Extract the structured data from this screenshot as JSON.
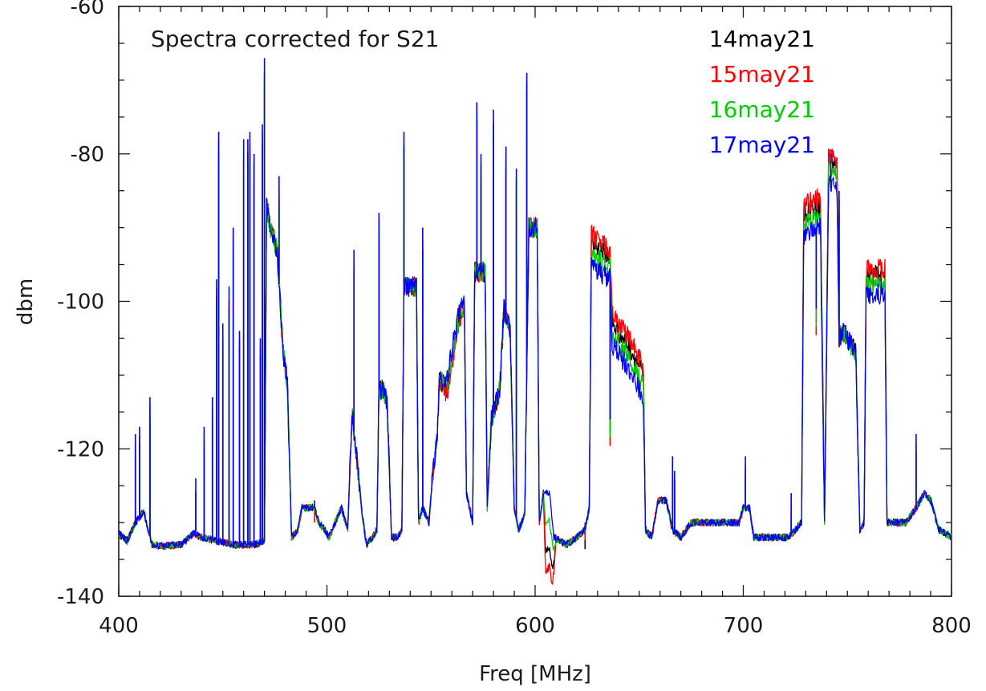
{
  "chart_data": {
    "type": "line",
    "title": "",
    "annotation": "Spectra corrected for S21",
    "xlabel": "Freq [MHz]",
    "ylabel": "dbm",
    "xlim": [
      400,
      800
    ],
    "ylim": [
      -140,
      -60
    ],
    "xticks": [
      400,
      500,
      600,
      700,
      800
    ],
    "xtick_labels": [
      "400",
      "500",
      "600",
      "700",
      "800"
    ],
    "yticks": [
      -140,
      -120,
      -100,
      -80,
      -60
    ],
    "ytick_labels": [
      "-140",
      "-120",
      "-100",
      "-80",
      "-60"
    ],
    "x_minor_step": 10,
    "y_minor_step": 5,
    "grid": false,
    "legend_position": "top-right",
    "baseline": [
      [
        400,
        -131.5
      ],
      [
        404,
        -132.5
      ],
      [
        408,
        -130
      ],
      [
        412,
        -128.5
      ],
      [
        416,
        -133
      ],
      [
        420,
        -133.2
      ],
      [
        430,
        -133
      ],
      [
        436,
        -131.5
      ],
      [
        440,
        -132
      ],
      [
        447,
        -132.5
      ],
      [
        455,
        -133
      ],
      [
        465,
        -133
      ],
      [
        470,
        -132.5
      ],
      [
        471,
        -87
      ],
      [
        473,
        -90
      ],
      [
        476,
        -93
      ],
      [
        479,
        -107
      ],
      [
        481,
        -111
      ],
      [
        483,
        -132
      ],
      [
        486,
        -131
      ],
      [
        488,
        -128
      ],
      [
        494,
        -128
      ],
      [
        496,
        -130
      ],
      [
        499,
        -131
      ],
      [
        501,
        -132
      ],
      [
        504,
        -130
      ],
      [
        507,
        -128
      ],
      [
        510,
        -131
      ],
      [
        512,
        -115
      ],
      [
        515,
        -123
      ],
      [
        517,
        -129
      ],
      [
        519,
        -133
      ],
      [
        522,
        -132
      ],
      [
        524,
        -131
      ],
      [
        525,
        -112
      ],
      [
        527,
        -112
      ],
      [
        529,
        -114
      ],
      [
        531,
        -132
      ],
      [
        534,
        -132
      ],
      [
        536,
        -131
      ],
      [
        537,
        -98
      ],
      [
        543,
        -98
      ],
      [
        544,
        -130
      ],
      [
        546,
        -128
      ],
      [
        549,
        -130
      ],
      [
        551,
        -123
      ],
      [
        553,
        -118
      ],
      [
        554,
        -111
      ],
      [
        558,
        -110
      ],
      [
        563,
        -102
      ],
      [
        566,
        -100
      ],
      [
        567,
        -126
      ],
      [
        570,
        -130
      ],
      [
        571,
        -96
      ],
      [
        576,
        -96
      ],
      [
        577,
        -128
      ],
      [
        579,
        -116
      ],
      [
        583,
        -112
      ],
      [
        585,
        -101
      ],
      [
        588,
        -104
      ],
      [
        590,
        -128
      ],
      [
        592,
        -131
      ],
      [
        595,
        -129
      ],
      [
        597,
        -90
      ],
      [
        601,
        -90
      ],
      [
        602,
        -130
      ],
      [
        604,
        -126
      ],
      [
        607,
        -126
      ],
      [
        609,
        -132
      ],
      [
        615,
        -133
      ],
      [
        620,
        -132
      ],
      [
        624,
        -131
      ],
      [
        626,
        -128
      ],
      [
        627,
        -95
      ],
      [
        631,
        -96
      ],
      [
        636,
        -97
      ],
      [
        637,
        -106
      ],
      [
        645,
        -109
      ],
      [
        652,
        -113
      ],
      [
        653,
        -131
      ],
      [
        656,
        -132
      ],
      [
        659,
        -127
      ],
      [
        663,
        -127
      ],
      [
        666,
        -131
      ],
      [
        670,
        -132
      ],
      [
        675,
        -130
      ],
      [
        685,
        -130
      ],
      [
        692,
        -130
      ],
      [
        698,
        -130
      ],
      [
        700,
        -128
      ],
      [
        703,
        -128
      ],
      [
        705,
        -132
      ],
      [
        712,
        -132
      ],
      [
        722,
        -132
      ],
      [
        728,
        -130
      ],
      [
        729,
        -91
      ],
      [
        737,
        -90
      ],
      [
        739,
        -130
      ],
      [
        741,
        -84
      ],
      [
        745,
        -85
      ],
      [
        746,
        -105
      ],
      [
        748,
        -104
      ],
      [
        754,
        -107
      ],
      [
        756,
        -131
      ],
      [
        758,
        -130
      ],
      [
        759,
        -99
      ],
      [
        768,
        -99
      ],
      [
        769,
        -130
      ],
      [
        772,
        -130
      ],
      [
        778,
        -130
      ],
      [
        783,
        -128
      ],
      [
        787,
        -126
      ],
      [
        790,
        -127
      ],
      [
        794,
        -131
      ],
      [
        800,
        -132
      ]
    ],
    "spikes": [
      [
        408,
        -118
      ],
      [
        410,
        -117
      ],
      [
        415,
        -113
      ],
      [
        437,
        -124
      ],
      [
        441,
        -117
      ],
      [
        445,
        -113
      ],
      [
        447,
        -97
      ],
      [
        448,
        -77
      ],
      [
        450,
        -103
      ],
      [
        453,
        -98
      ],
      [
        455,
        -90
      ],
      [
        458,
        -104
      ],
      [
        460,
        -78
      ],
      [
        462,
        -78
      ],
      [
        463,
        -77
      ],
      [
        465,
        -80
      ],
      [
        468,
        -105
      ],
      [
        469,
        -76
      ],
      [
        470,
        -67
      ],
      [
        477,
        -83
      ],
      [
        494,
        -127
      ],
      [
        513,
        -93
      ],
      [
        525,
        -88
      ],
      [
        537,
        -77
      ],
      [
        546,
        -90
      ],
      [
        561,
        -105
      ],
      [
        572,
        -73
      ],
      [
        574,
        -80
      ],
      [
        580,
        -74
      ],
      [
        586,
        -79
      ],
      [
        591,
        -82
      ],
      [
        596,
        -69
      ],
      [
        624,
        -130
      ],
      [
        636,
        -116
      ],
      [
        666,
        -121
      ],
      [
        667,
        -123
      ],
      [
        701,
        -121
      ],
      [
        723,
        -126
      ],
      [
        735,
        -101
      ],
      [
        742,
        -80
      ],
      [
        746,
        -85
      ],
      [
        783,
        -118
      ]
    ],
    "series": [
      {
        "name": "14may21",
        "color": "#000000",
        "offset_scale": 1.0
      },
      {
        "name": "15may21",
        "color": "#ff0000",
        "offset_scale": 1.35
      },
      {
        "name": "16may21",
        "color": "#00cc00",
        "offset_scale": 0.5
      },
      {
        "name": "17may21",
        "color": "#0000ff",
        "offset_scale": 0.0
      }
    ],
    "series_offsets_db": [
      [
        450,
        0
      ],
      [
        555,
        0
      ],
      [
        557,
        -1.5
      ],
      [
        563,
        -1
      ],
      [
        566,
        0
      ],
      [
        604,
        0
      ],
      [
        605,
        -8
      ],
      [
        608,
        -7
      ],
      [
        610,
        0
      ],
      [
        626,
        0
      ],
      [
        627,
        3
      ],
      [
        636,
        3
      ],
      [
        637,
        3
      ],
      [
        652,
        3
      ],
      [
        653,
        0
      ],
      [
        728,
        0
      ],
      [
        729,
        3
      ],
      [
        738,
        3
      ],
      [
        739,
        0
      ],
      [
        741,
        3.5
      ],
      [
        745,
        3
      ],
      [
        746,
        0
      ],
      [
        758,
        0
      ],
      [
        759,
        2.5
      ],
      [
        768,
        2.5
      ],
      [
        769,
        0
      ],
      [
        800,
        0
      ]
    ]
  },
  "colors": {
    "frame": "#1a1a1a",
    "background": "#ffffff"
  }
}
